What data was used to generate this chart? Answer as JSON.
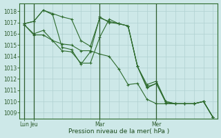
{
  "title": "Pression niveau de la mer( hPa )",
  "bg_color": "#cde8e8",
  "grid_color": "#b0d0d0",
  "line_color": "#2d6b2d",
  "marker_color": "#2d6b2d",
  "ylim": [
    1008.5,
    1018.7
  ],
  "yticks": [
    1009,
    1010,
    1011,
    1012,
    1013,
    1014,
    1015,
    1016,
    1017,
    1018
  ],
  "xtick_labels": [
    "Lun",
    "Jeu",
    "Mar",
    "Mer"
  ],
  "series1_x": [
    0,
    1,
    2,
    3,
    4,
    5,
    6,
    7,
    8,
    9,
    10,
    11,
    12,
    13,
    14,
    15,
    16,
    17,
    18,
    19,
    20
  ],
  "series": [
    {
      "x": [
        0,
        1,
        2,
        3,
        4,
        5,
        6,
        7,
        8,
        9,
        10,
        11,
        12,
        13,
        14,
        15,
        16,
        17,
        18,
        19,
        20
      ],
      "y": [
        1016.9,
        1017.1,
        1018.1,
        1017.8,
        1017.5,
        1017.3,
        1015.4,
        1014.9,
        1017.4,
        1017.1,
        1016.9,
        1016.7,
        1013.1,
        1011.5,
        1011.8,
        1010.0,
        1009.8,
        1009.8,
        1009.8,
        1010.0,
        1008.6
      ]
    },
    {
      "x": [
        0,
        1,
        2,
        3,
        4,
        5,
        6,
        7,
        8,
        9,
        10,
        11,
        12,
        13,
        14,
        15,
        16,
        17,
        18,
        19,
        20
      ],
      "y": [
        1016.9,
        1017.1,
        1018.1,
        1017.7,
        1014.8,
        1014.6,
        1013.3,
        1014.4,
        1017.5,
        1017.0,
        1016.9,
        1016.7,
        1013.1,
        1011.2,
        1011.6,
        1009.9,
        1009.8,
        1009.8,
        1009.8,
        1010.0,
        1008.6
      ]
    },
    {
      "x": [
        0,
        1,
        2,
        3,
        4,
        5,
        6,
        7,
        8,
        9,
        10,
        11,
        12,
        13,
        14,
        15,
        16,
        17,
        18,
        19,
        20
      ],
      "y": [
        1016.8,
        1016.0,
        1016.3,
        1015.4,
        1014.5,
        1014.4,
        1013.4,
        1013.4,
        1015.7,
        1017.3,
        1016.9,
        1016.7,
        1013.1,
        1011.3,
        1011.6,
        1010.0,
        1009.8,
        1009.8,
        1009.8,
        1010.0,
        1008.6
      ]
    },
    {
      "x": [
        0,
        1,
        2,
        3,
        4,
        5,
        6,
        7,
        8,
        9,
        10,
        11,
        12,
        13,
        14,
        15,
        16,
        17,
        18,
        19,
        20
      ],
      "y": [
        1016.8,
        1015.9,
        1015.9,
        1015.4,
        1015.1,
        1015.0,
        1014.5,
        1014.5,
        1014.2,
        1014.0,
        1012.9,
        1011.5,
        1011.6,
        1010.2,
        1009.8,
        1009.8,
        1009.8,
        1009.8,
        1009.8,
        1010.0,
        1008.6
      ]
    }
  ],
  "vline_x": [
    0,
    1,
    8,
    14
  ],
  "xlim": [
    -0.5,
    20.5
  ],
  "n_points": 21,
  "title_fontsize": 6.5,
  "tick_fontsize": 5.5
}
